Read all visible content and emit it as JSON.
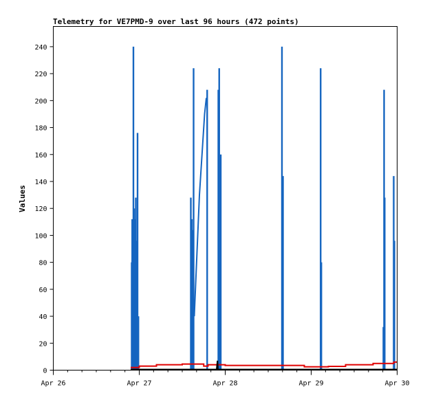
{
  "chart_data": {
    "type": "line",
    "title": "Telemetry for VE7PMD-9 over last 96 hours (472 points)",
    "xlabel": "",
    "ylabel": "Values",
    "x_tick_labels": [
      "Apr 26",
      "Apr 27",
      "Apr 28",
      "Apr 29",
      "Apr 30"
    ],
    "x_tick_values": [
      0,
      1,
      2,
      3,
      4
    ],
    "y_ticks": [
      0,
      20,
      40,
      60,
      80,
      100,
      120,
      140,
      160,
      180,
      200,
      220,
      240
    ],
    "xlim": [
      0,
      4
    ],
    "ylim": [
      0,
      255
    ],
    "grid": false,
    "legend": "none",
    "series": [
      {
        "color": "#1565c0",
        "spikes": [
          [
            0.912,
            80
          ],
          [
            0.918,
            112
          ],
          [
            0.925,
            64
          ],
          [
            0.932,
            240
          ],
          [
            0.94,
            120
          ],
          [
            0.946,
            112
          ],
          [
            0.953,
            60
          ],
          [
            0.96,
            128
          ],
          [
            0.967,
            72
          ],
          [
            0.972,
            96
          ],
          [
            0.98,
            176
          ],
          [
            0.99,
            40
          ],
          [
            1.6,
            128
          ],
          [
            1.61,
            112
          ],
          [
            1.62,
            104
          ],
          [
            1.632,
            224
          ],
          [
            1.79,
            208
          ],
          [
            1.92,
            208
          ],
          [
            1.93,
            224
          ],
          [
            1.94,
            80
          ],
          [
            1.948,
            160
          ],
          [
            2.66,
            240
          ],
          [
            2.672,
            144
          ],
          [
            3.11,
            224
          ],
          [
            3.118,
            80
          ],
          [
            3.84,
            32
          ],
          [
            3.848,
            208
          ],
          [
            3.855,
            128
          ],
          [
            3.96,
            144
          ],
          [
            3.968,
            96
          ]
        ],
        "ramp": [
          [
            1.64,
            40
          ],
          [
            1.66,
            70
          ],
          [
            1.68,
            100
          ],
          [
            1.7,
            130
          ],
          [
            1.72,
            150
          ],
          [
            1.74,
            170
          ],
          [
            1.76,
            190
          ],
          [
            1.78,
            202
          ]
        ]
      },
      {
        "color": "#e00000",
        "points": [
          [
            0.9,
            2
          ],
          [
            1.0,
            3
          ],
          [
            1.2,
            4
          ],
          [
            1.5,
            4.5
          ],
          [
            1.72,
            4.5
          ],
          [
            1.75,
            3
          ],
          [
            1.8,
            4
          ],
          [
            2.0,
            3.5
          ],
          [
            2.5,
            3.5
          ],
          [
            2.9,
            3.5
          ],
          [
            2.92,
            2.5
          ],
          [
            3.2,
            2.8
          ],
          [
            3.4,
            4
          ],
          [
            3.7,
            4
          ],
          [
            3.72,
            5
          ],
          [
            3.94,
            5
          ],
          [
            3.96,
            6
          ],
          [
            4.0,
            6
          ]
        ]
      },
      {
        "color": "#000000",
        "points": [
          [
            0.9,
            0.5
          ],
          [
            1.9,
            0.5
          ],
          [
            1.91,
            7
          ],
          [
            1.915,
            0.5
          ],
          [
            4.0,
            0.5
          ]
        ]
      }
    ]
  }
}
